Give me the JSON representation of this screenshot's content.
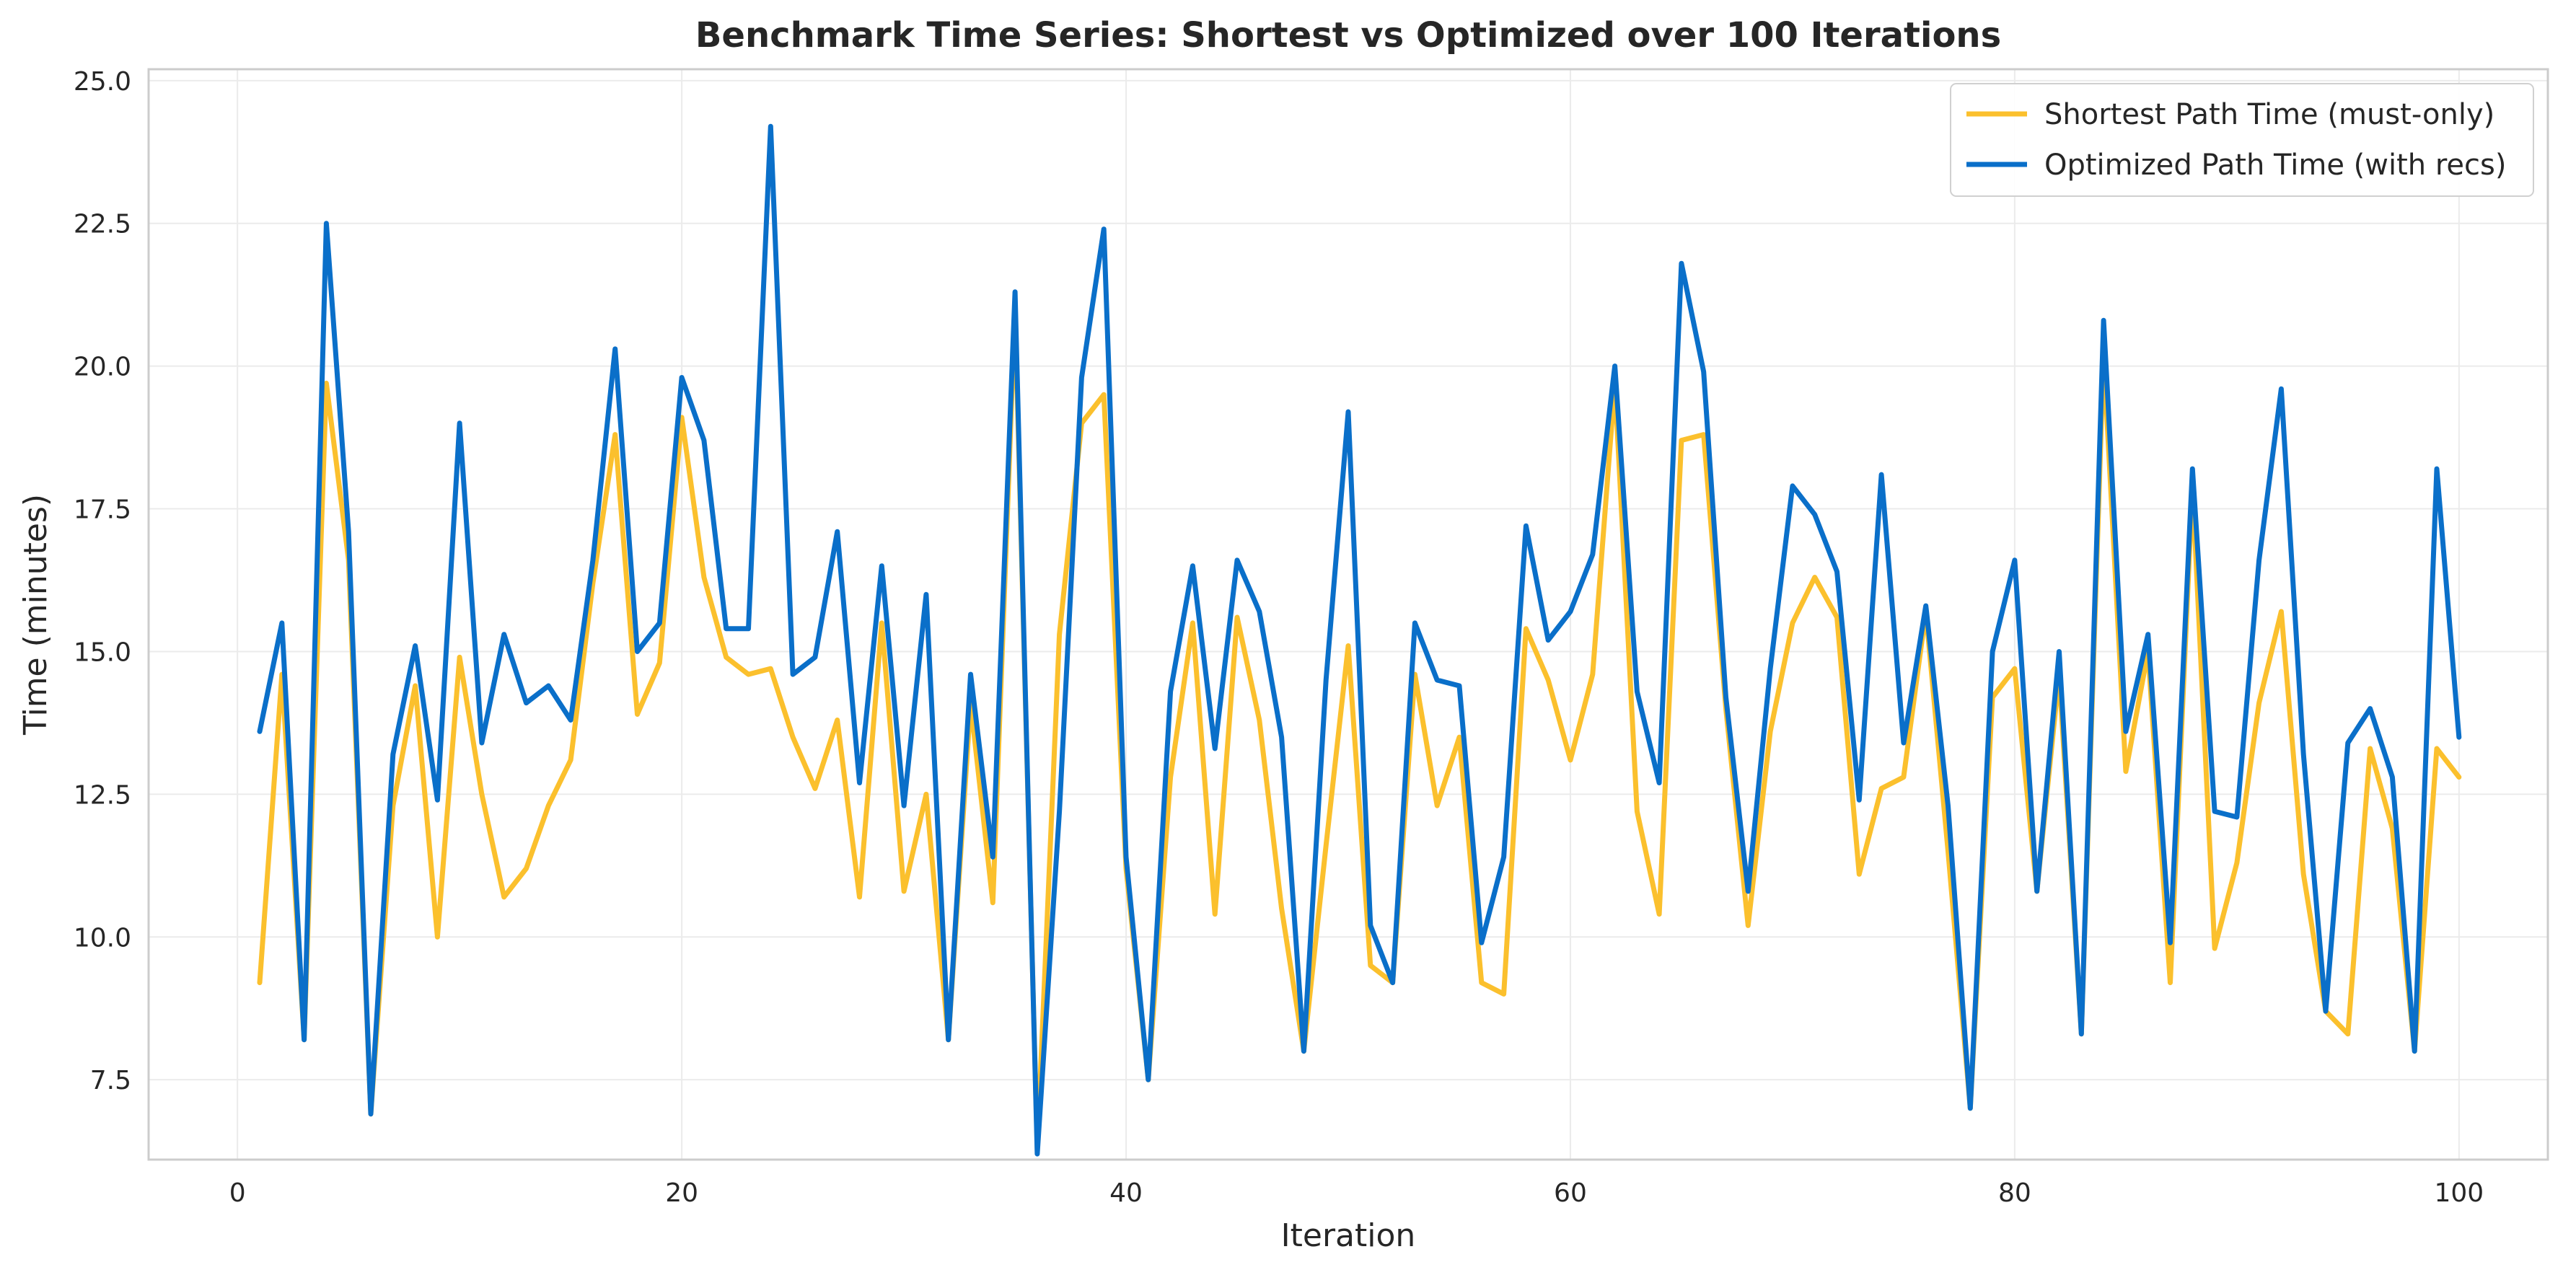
{
  "chart_data": {
    "type": "line",
    "title": "Benchmark Time Series: Shortest vs Optimized over 100 Iterations",
    "xlabel": "Iteration",
    "ylabel": "Time (minutes)",
    "xlim": [
      -4,
      104
    ],
    "ylim": [
      6.1,
      25.2
    ],
    "xticks": [
      0,
      20,
      40,
      60,
      80,
      100
    ],
    "xtick_labels": [
      "0",
      "20",
      "40",
      "60",
      "80",
      "100"
    ],
    "yticks": [
      7.5,
      10.0,
      12.5,
      15.0,
      17.5,
      20.0,
      22.5,
      25.0
    ],
    "ytick_labels": [
      "7.5",
      "10.0",
      "12.5",
      "15.0",
      "17.5",
      "20.0",
      "22.5",
      "25.0"
    ],
    "grid": true,
    "legend_position": "top-right",
    "x": [
      1,
      2,
      3,
      4,
      5,
      6,
      7,
      8,
      9,
      10,
      11,
      12,
      13,
      14,
      15,
      16,
      17,
      18,
      19,
      20,
      21,
      22,
      23,
      24,
      25,
      26,
      27,
      28,
      29,
      30,
      31,
      32,
      33,
      34,
      35,
      36,
      37,
      38,
      39,
      40,
      41,
      42,
      43,
      44,
      45,
      46,
      47,
      48,
      49,
      50,
      51,
      52,
      53,
      54,
      55,
      56,
      57,
      58,
      59,
      60,
      61,
      62,
      63,
      64,
      65,
      66,
      67,
      68,
      69,
      70,
      71,
      72,
      73,
      74,
      75,
      76,
      77,
      78,
      79,
      80,
      81,
      82,
      83,
      84,
      85,
      86,
      87,
      88,
      89,
      90,
      91,
      92,
      93,
      94,
      95,
      96,
      97,
      98,
      99,
      100
    ],
    "series": [
      {
        "name": "Shortest Path Time (must-only)",
        "color": "#fbc02d",
        "values": [
          9.2,
          14.6,
          8.2,
          19.7,
          16.6,
          6.9,
          12.3,
          14.4,
          10.0,
          14.9,
          12.5,
          10.7,
          11.2,
          12.3,
          13.1,
          16.2,
          18.8,
          13.9,
          14.8,
          19.1,
          16.3,
          14.9,
          14.6,
          14.7,
          13.5,
          12.6,
          13.8,
          10.7,
          15.5,
          10.8,
          12.5,
          8.2,
          14.1,
          10.6,
          21.0,
          6.3,
          15.3,
          19.0,
          19.5,
          11.2,
          7.5,
          12.8,
          15.5,
          10.4,
          15.6,
          13.8,
          10.5,
          8.0,
          11.6,
          15.1,
          9.5,
          9.2,
          14.6,
          12.3,
          13.5,
          9.2,
          9.0,
          15.4,
          14.5,
          13.1,
          14.6,
          19.7,
          12.2,
          10.4,
          18.7,
          18.8,
          14.0,
          10.2,
          13.6,
          15.5,
          16.3,
          15.6,
          11.1,
          12.6,
          12.8,
          15.7,
          11.5,
          7.0,
          14.2,
          14.7,
          10.8,
          14.6,
          8.3,
          20.2,
          12.9,
          15.0,
          9.2,
          17.9,
          9.8,
          11.3,
          14.1,
          15.7,
          11.1,
          8.7,
          8.3,
          13.3,
          11.9,
          8.0,
          13.3,
          12.8
        ]
      },
      {
        "name": "Optimized Path Time (with recs)",
        "color": "#0a6fc9",
        "values": [
          13.6,
          15.5,
          8.2,
          22.5,
          17.1,
          6.9,
          13.2,
          15.1,
          12.4,
          19.0,
          13.4,
          15.3,
          14.1,
          14.4,
          13.8,
          16.6,
          20.3,
          15.0,
          15.5,
          19.8,
          18.7,
          15.4,
          15.4,
          24.2,
          14.6,
          14.9,
          17.1,
          12.7,
          16.5,
          12.3,
          16.0,
          8.2,
          14.6,
          11.4,
          21.3,
          6.2,
          12.2,
          19.8,
          22.4,
          11.4,
          7.5,
          14.3,
          16.5,
          13.3,
          16.6,
          15.7,
          13.5,
          8.0,
          14.5,
          19.2,
          10.2,
          9.2,
          15.5,
          14.5,
          14.4,
          9.9,
          11.4,
          17.2,
          15.2,
          15.7,
          16.7,
          20.0,
          14.3,
          12.7,
          21.8,
          19.9,
          14.2,
          10.8,
          14.7,
          17.9,
          17.4,
          16.4,
          12.4,
          18.1,
          13.4,
          15.8,
          12.3,
          7.0,
          15.0,
          16.6,
          10.8,
          15.0,
          8.3,
          20.8,
          13.6,
          15.3,
          9.9,
          18.2,
          12.2,
          12.1,
          16.6,
          19.6,
          13.2,
          8.7,
          13.4,
          14.0,
          12.8,
          8.0,
          18.2,
          13.5
        ]
      }
    ]
  }
}
